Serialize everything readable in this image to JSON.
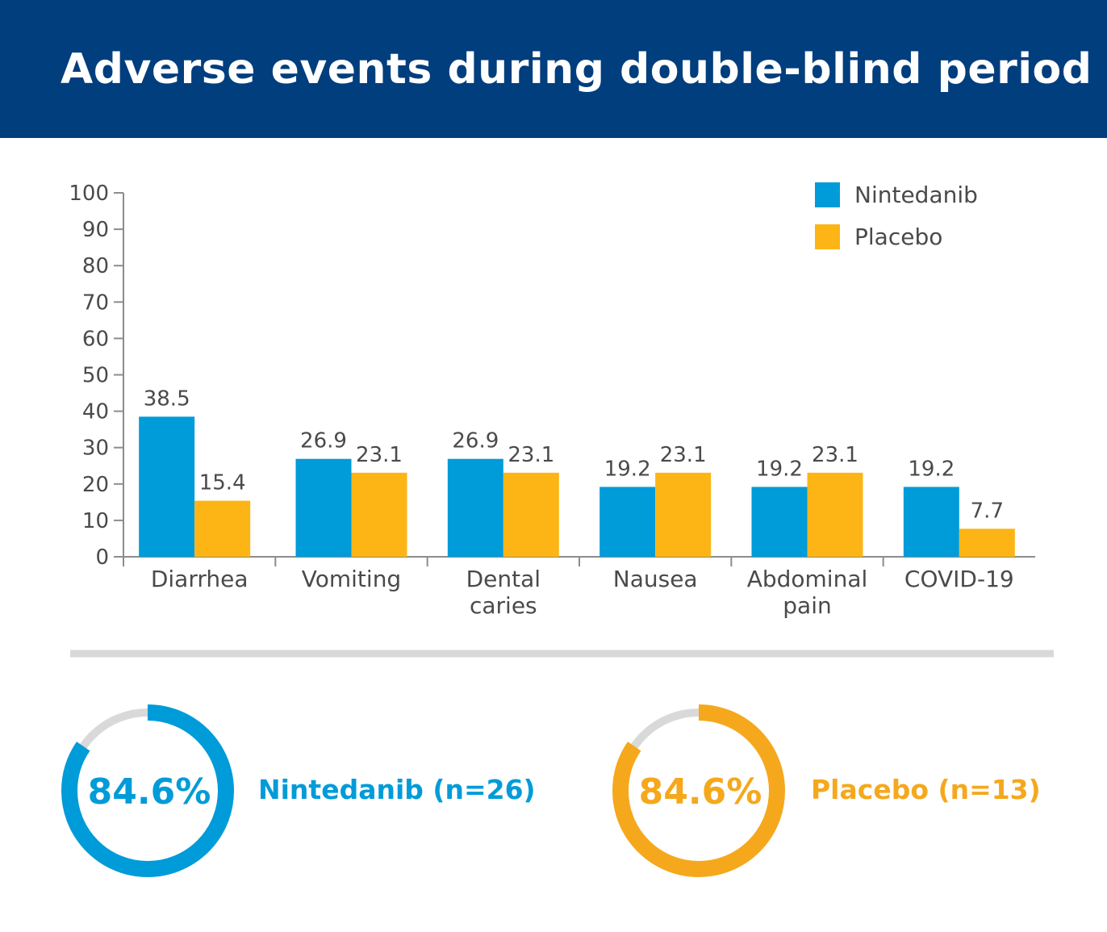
{
  "chart_data": {
    "type": "bar",
    "title": "Adverse events during double-blind period",
    "categories": [
      [
        "Diarrhea"
      ],
      [
        "Vomiting"
      ],
      [
        "Dental",
        "caries"
      ],
      [
        "Nausea"
      ],
      [
        "Abdominal",
        "pain"
      ],
      [
        "COVID-19"
      ]
    ],
    "series": [
      {
        "name": "Nintedanib",
        "color": "#009bd9",
        "values": [
          38.5,
          26.9,
          26.9,
          19.2,
          19.2,
          19.2
        ]
      },
      {
        "name": "Placebo",
        "color": "#fdb515",
        "values": [
          15.4,
          23.1,
          23.1,
          23.1,
          23.1,
          7.7
        ]
      }
    ],
    "ylim": [
      0,
      100
    ],
    "yticks": [
      0,
      10,
      20,
      30,
      40,
      50,
      60,
      70,
      80,
      90,
      100
    ],
    "legend": "top-right",
    "grid": false
  },
  "summary": [
    {
      "value_label": "84.6%",
      "percent": 84.6,
      "label": "Nintedanib (n=26)",
      "color": "#009bd9"
    },
    {
      "value_label": "84.6%",
      "percent": 84.6,
      "label": "Placebo (n=13)",
      "color": "#f5a81c"
    }
  ],
  "colors": {
    "header": "#003e7e",
    "divider": "#d9d9d9",
    "ring_track": "#d9d9d9",
    "axis": "#8c8c8c",
    "text": "#4a4a4a"
  }
}
